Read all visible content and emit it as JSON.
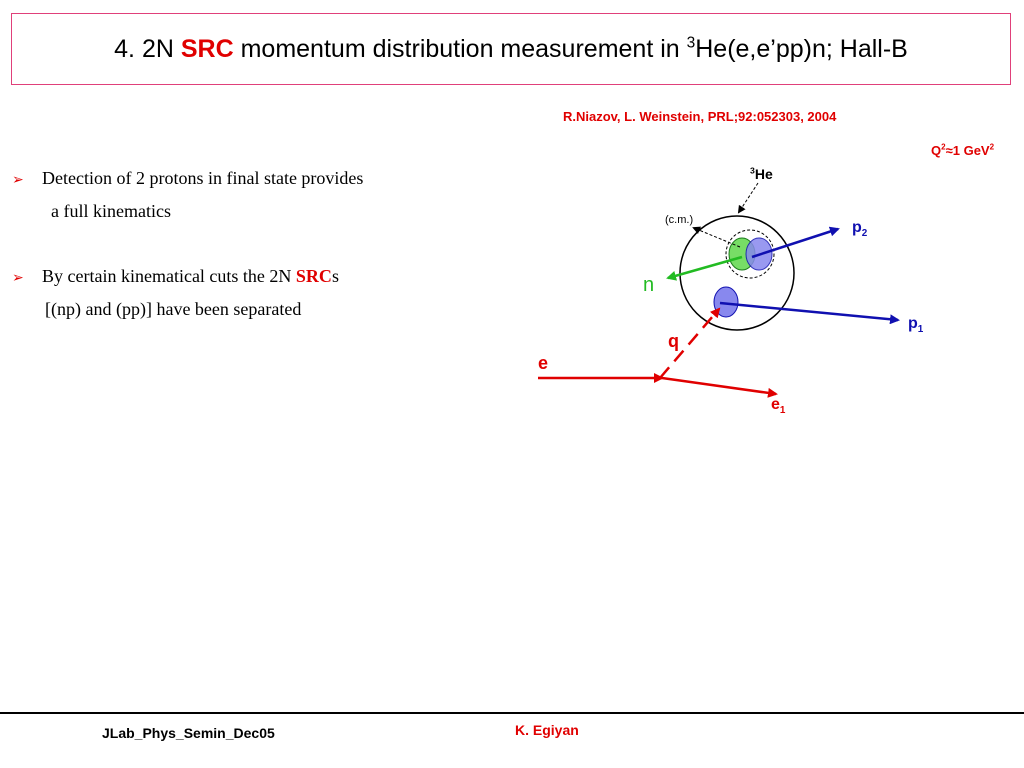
{
  "title": {
    "prefix": "4. 2N ",
    "highlight": "SRC",
    "middle": " momentum distribution measurement in ",
    "superscript": "3",
    "suffix": "He(e,e’pp)n; Hall-B"
  },
  "reference": "R.Niazov, L. Weinstein, PRL;92:052303, 2004",
  "kinematics": {
    "q": "Q",
    "q_sup": "2",
    "approx": "≈1 GeV",
    "unit_sup": "2"
  },
  "bullets": [
    {
      "text": "Detection of 2 protons in final state provides",
      "continuation": "a full kinematics"
    },
    {
      "text": "By certain kinematical cuts the 2N ",
      "highlight": "SRC",
      "tail": "s",
      "continuation": "[(np) and (pp)] have been separated"
    }
  ],
  "diagram": {
    "nucleus_sup": "3",
    "nucleus": "He",
    "cm": "(c.m.)",
    "p2": "p",
    "p2_sub": "2",
    "n": "n",
    "p1": "p",
    "p1_sub": "1",
    "q": "q",
    "e": "e",
    "e1": "e",
    "e1_sub": "1"
  },
  "colors": {
    "accent_red": "#e00000",
    "proton_blue": "#1010b0",
    "neutron_green": "#22bb22",
    "border_pink": "#e0407a"
  },
  "footer": {
    "left": "JLab_Phys_Semin_Dec05",
    "center": "K. Egiyan"
  }
}
